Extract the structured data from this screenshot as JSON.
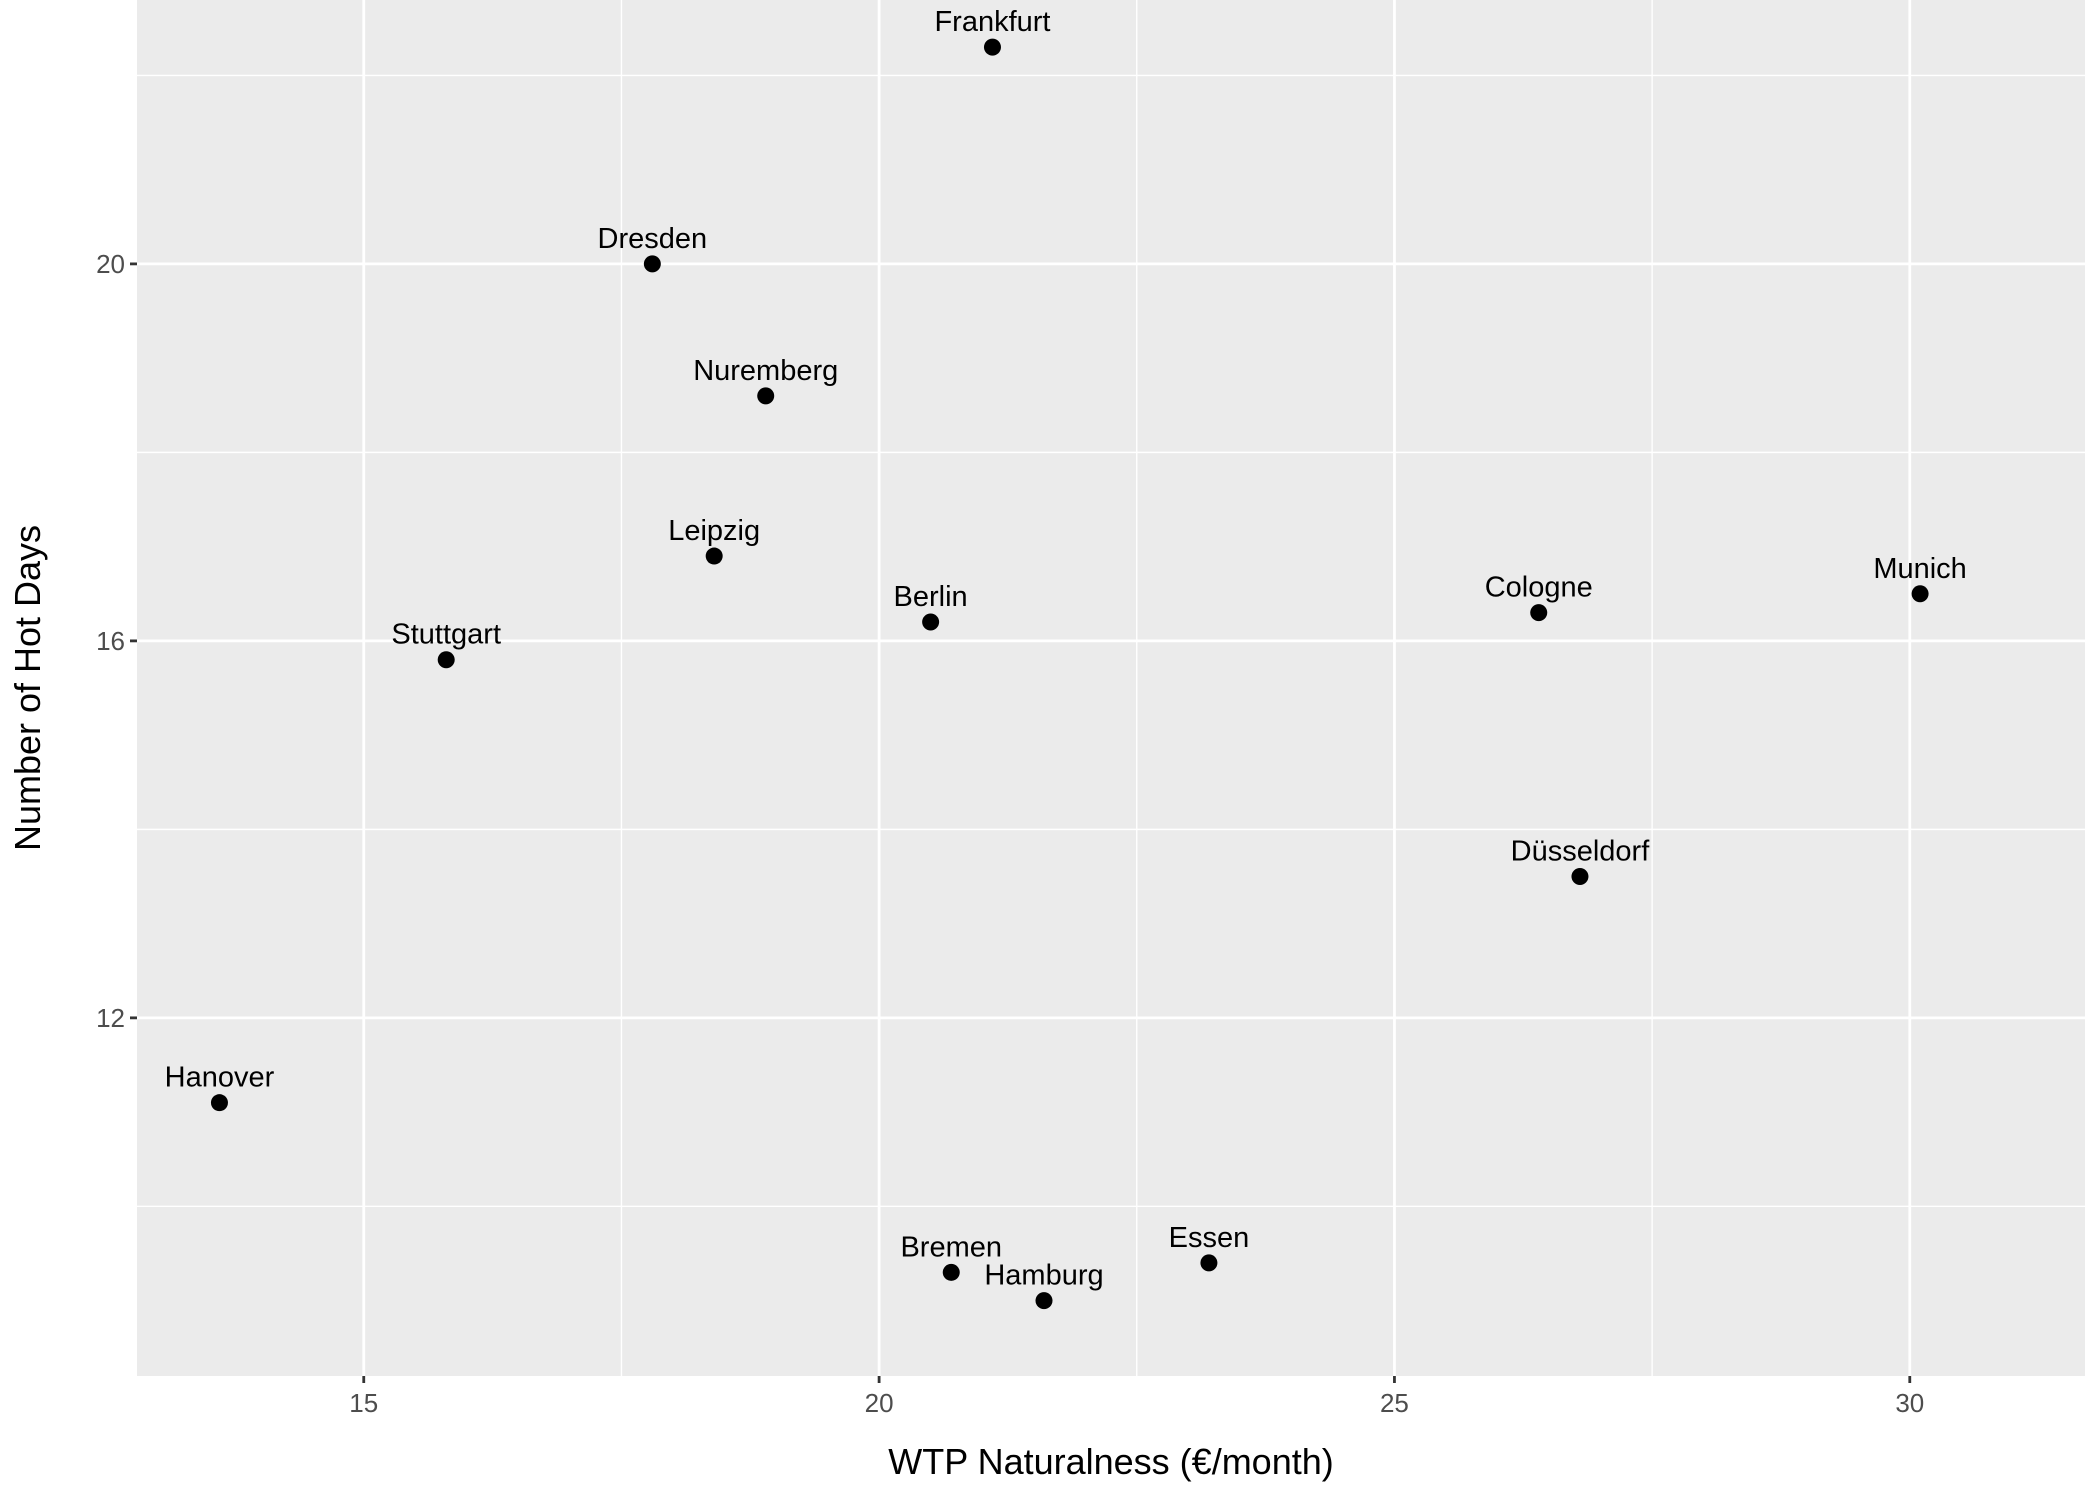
{
  "chart_data": {
    "type": "scatter",
    "title": "",
    "xlabel": "WTP Naturalness (€/month)",
    "ylabel": "Number of Hot Days",
    "xlim": [
      12.8,
      31.7
    ],
    "ylim": [
      8.2,
      22.8
    ],
    "x_ticks": [
      15,
      20,
      25,
      30
    ],
    "x_tick_labels": [
      "15",
      "20",
      "25",
      "30"
    ],
    "y_ticks": [
      12,
      16,
      20
    ],
    "y_tick_labels": [
      "12",
      "16",
      "20"
    ],
    "grid": true,
    "legend": "none",
    "points": [
      {
        "label": "Frankfurt",
        "x": 21.1,
        "y": 22.3
      },
      {
        "label": "Dresden",
        "x": 17.8,
        "y": 20.0
      },
      {
        "label": "Nuremberg",
        "x": 18.9,
        "y": 18.6
      },
      {
        "label": "Leipzig",
        "x": 18.4,
        "y": 16.9
      },
      {
        "label": "Berlin",
        "x": 20.5,
        "y": 16.2
      },
      {
        "label": "Stuttgart",
        "x": 15.8,
        "y": 15.8
      },
      {
        "label": "Cologne",
        "x": 26.4,
        "y": 16.3
      },
      {
        "label": "Munich",
        "x": 30.1,
        "y": 16.5
      },
      {
        "label": "Düsseldorf",
        "x": 26.8,
        "y": 13.5
      },
      {
        "label": "Hanover",
        "x": 13.6,
        "y": 11.1
      },
      {
        "label": "Bremen",
        "x": 20.7,
        "y": 9.3
      },
      {
        "label": "Hamburg",
        "x": 21.6,
        "y": 9.0
      },
      {
        "label": "Essen",
        "x": 23.2,
        "y": 9.4
      }
    ]
  },
  "colors": {
    "panel_background": "#ebebeb",
    "grid_major": "#ffffff",
    "point": "#000000",
    "tick_text": "#4d4d4d"
  }
}
